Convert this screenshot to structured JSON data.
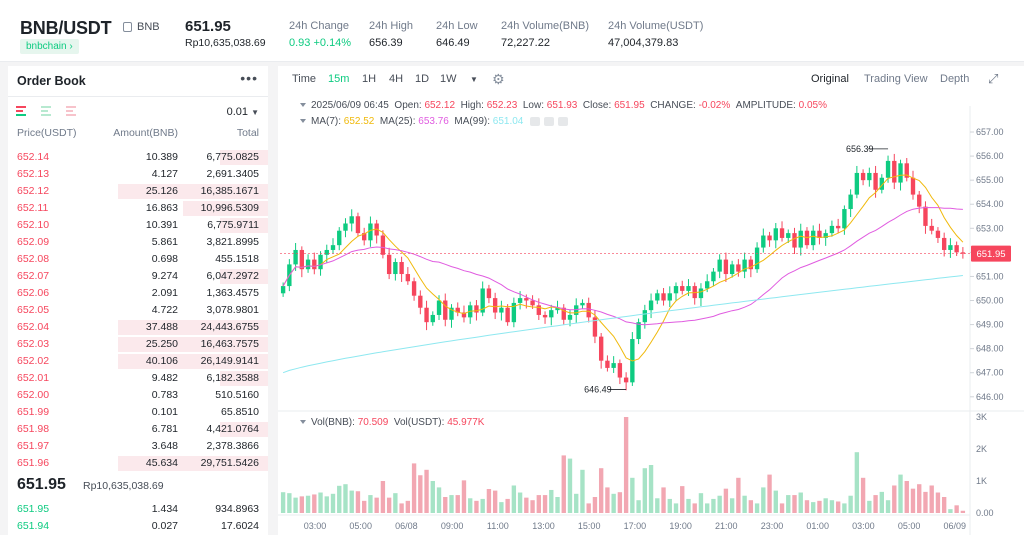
{
  "header": {
    "symbol": "BNB/USDT",
    "coin": "BNB",
    "tag": "bnbchain",
    "price": "651.95",
    "price_idr": "Rp10,635,038.69",
    "stats": [
      {
        "label": "24h Change",
        "value": "0.93 +0.14%",
        "color": "#0ecb81"
      },
      {
        "label": "24h High",
        "value": "656.39",
        "color": "#1e2329"
      },
      {
        "label": "24h Low",
        "value": "646.49",
        "color": "#1e2329"
      },
      {
        "label": "24h Volume(BNB)",
        "value": "72,227.22",
        "color": "#1e2329"
      },
      {
        "label": "24h Volume(USDT)",
        "value": "47,004,379.83",
        "color": "#1e2329"
      }
    ]
  },
  "orderbook": {
    "title": "Order Book",
    "precision": "0.01",
    "columns": [
      "Price(USDT)",
      "Amount(BNB)",
      "Total"
    ],
    "asks": [
      {
        "price": "652.14",
        "amount": "10.389",
        "total": "6,775.0825",
        "depth": 0.32
      },
      {
        "price": "652.13",
        "amount": "4.127",
        "total": "2,691.3405",
        "depth": 0.0
      },
      {
        "price": "652.12",
        "amount": "25.126",
        "total": "16,385.1671",
        "depth": 1.0
      },
      {
        "price": "652.11",
        "amount": "16.863",
        "total": "10,996.5309",
        "depth": 0.57
      },
      {
        "price": "652.10",
        "amount": "10.391",
        "total": "6,775.9711",
        "depth": 0.32
      },
      {
        "price": "652.09",
        "amount": "5.861",
        "total": "3,821.8995",
        "depth": 0.0
      },
      {
        "price": "652.08",
        "amount": "0.698",
        "total": "455.1518",
        "depth": 0.0
      },
      {
        "price": "652.07",
        "amount": "9.274",
        "total": "6,047.2972",
        "depth": 0.32
      },
      {
        "price": "652.06",
        "amount": "2.091",
        "total": "1,363.4575",
        "depth": 0.0
      },
      {
        "price": "652.05",
        "amount": "4.722",
        "total": "3,078.9801",
        "depth": 0.0
      },
      {
        "price": "652.04",
        "amount": "37.488",
        "total": "24,443.6755",
        "depth": 1.0
      },
      {
        "price": "652.03",
        "amount": "25.250",
        "total": "16,463.7575",
        "depth": 1.0
      },
      {
        "price": "652.02",
        "amount": "40.106",
        "total": "26,149.9141",
        "depth": 1.0
      },
      {
        "price": "652.01",
        "amount": "9.482",
        "total": "6,182.3588",
        "depth": 0.32
      },
      {
        "price": "652.00",
        "amount": "0.783",
        "total": "510.5160",
        "depth": 0.0
      },
      {
        "price": "651.99",
        "amount": "0.101",
        "total": "65.8510",
        "depth": 0.0
      },
      {
        "price": "651.98",
        "amount": "6.781",
        "total": "4,421.0764",
        "depth": 0.32
      },
      {
        "price": "651.97",
        "amount": "3.648",
        "total": "2,378.3866",
        "depth": 0.0
      },
      {
        "price": "651.96",
        "amount": "45.634",
        "total": "29,751.5426",
        "depth": 1.0
      }
    ],
    "last_price": "651.95",
    "last_price_idr": "Rp10,635,038.69",
    "bids": [
      {
        "price": "651.95",
        "amount": "1.434",
        "total": "934.8963",
        "depth": 0.0
      },
      {
        "price": "651.94",
        "amount": "0.027",
        "total": "17.6024",
        "depth": 0.0
      }
    ]
  },
  "toolbar": {
    "intervals": [
      "Time",
      "15m",
      "1H",
      "4H",
      "1D",
      "1W"
    ],
    "active_interval": "15m",
    "views": [
      "Original",
      "Trading View",
      "Depth"
    ],
    "active_view": "Original"
  },
  "legend": {
    "date": "2025/06/09 06:45",
    "open": "652.12",
    "high": "652.23",
    "low": "651.93",
    "close": "651.95",
    "change": "-0.02%",
    "amplitude": "0.05%",
    "ma7": "652.52",
    "ma25": "653.76",
    "ma99": "651.04",
    "vol_bnb": "70.509",
    "vol_usdt": "45.977K"
  },
  "chart_data": {
    "type": "candlestick",
    "price_ticks": [
      "657.00",
      "656.00",
      "655.00",
      "654.00",
      "653.00",
      "652.00",
      "651.00",
      "650.00",
      "649.00",
      "648.00",
      "647.00",
      "646.00"
    ],
    "price_range": [
      645.95,
      657.25
    ],
    "volume_ticks": [
      "3K",
      "2K",
      "1K",
      "0.00"
    ],
    "volume_max": 3000,
    "time_labels": [
      "03:00",
      "05:00",
      "06/08",
      "09:00",
      "11:00",
      "13:00",
      "15:00",
      "17:00",
      "19:00",
      "21:00",
      "23:00",
      "01:00",
      "03:00",
      "05:00",
      "06/09"
    ],
    "current_price": "651.95",
    "annotations": {
      "high": "656.39",
      "low": "646.49"
    },
    "up_color": "#0ecb81",
    "down_color": "#f6465d",
    "ma7_color": "#f0b90b",
    "ma25_color": "#e05ce0",
    "ma99_color": "#8ee8f0",
    "close": [
      650.6,
      651.5,
      652.1,
      651.3,
      651.7,
      651.3,
      651.9,
      652.1,
      652.3,
      652.9,
      653.2,
      653.5,
      652.8,
      652.5,
      653.2,
      652.7,
      651.9,
      651.1,
      651.6,
      651.1,
      650.8,
      650.2,
      649.7,
      649.1,
      649.4,
      650.0,
      649.2,
      649.7,
      649.5,
      649.3,
      649.8,
      649.5,
      650.5,
      650.1,
      649.5,
      649.7,
      649.1,
      649.9,
      650.1,
      650.0,
      649.8,
      649.4,
      649.3,
      649.6,
      649.7,
      649.2,
      649.4,
      649.8,
      649.9,
      649.3,
      648.5,
      647.5,
      647.2,
      647.4,
      646.8,
      646.6,
      648.4,
      649.1,
      649.6,
      650.0,
      650.3,
      650.0,
      650.3,
      650.6,
      650.4,
      650.6,
      650.1,
      650.5,
      650.8,
      651.2,
      651.7,
      651.1,
      651.5,
      651.2,
      651.7,
      651.3,
      652.2,
      652.7,
      652.5,
      653.0,
      652.6,
      652.8,
      652.2,
      652.9,
      652.3,
      652.9,
      652.6,
      652.8,
      653.1,
      653.0,
      653.8,
      654.4,
      655.3,
      655.0,
      655.3,
      654.6,
      655.1,
      655.8,
      654.9,
      655.7,
      655.1,
      654.4,
      653.9,
      653.1,
      652.9,
      652.6,
      652.1,
      652.3,
      652.0,
      651.95
    ],
    "volume": [
      650,
      620,
      480,
      520,
      540,
      580,
      640,
      520,
      600,
      850,
      900,
      700,
      680,
      380,
      560,
      480,
      1000,
      480,
      620,
      300,
      380,
      1550,
      1180,
      1350,
      1000,
      800,
      500,
      560,
      560,
      1020,
      460,
      380,
      440,
      750,
      700,
      340,
      440,
      860,
      640,
      480,
      400,
      560,
      560,
      720,
      500,
      1800,
      1700,
      600,
      1350,
      300,
      500,
      1400,
      800,
      600,
      650,
      3000,
      1100,
      400,
      1400,
      1500,
      460,
      800,
      440,
      300,
      840,
      440,
      300,
      620,
      300,
      440,
      540,
      760,
      460,
      1100,
      540,
      400,
      300,
      800,
      1200,
      700,
      300,
      560,
      560,
      640,
      400,
      340,
      380,
      460,
      400,
      360,
      300,
      540,
      1900,
      1100,
      380,
      560,
      660,
      400,
      860,
      1200,
      1000,
      760,
      900,
      660,
      860,
      640,
      500,
      120,
      240,
      70
    ]
  }
}
